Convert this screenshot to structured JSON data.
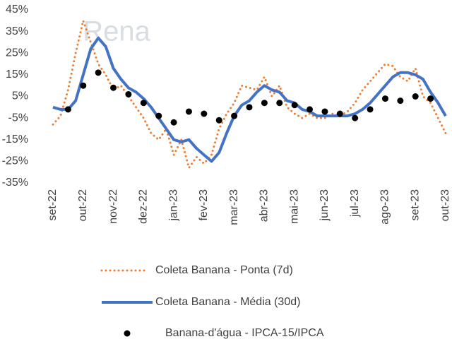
{
  "chart_data": {
    "type": "line",
    "watermark": "Rena",
    "categories": [
      "set-22",
      null,
      null,
      null,
      "out-22",
      null,
      null,
      null,
      "nov-22",
      null,
      null,
      null,
      "dez-22",
      null,
      null,
      null,
      "jan-23",
      null,
      null,
      null,
      "fev-23",
      null,
      null,
      null,
      "mar-23",
      null,
      null,
      null,
      "abr-23",
      null,
      null,
      null,
      "mai-23",
      null,
      null,
      null,
      "jun-23",
      null,
      null,
      null,
      "jul-23",
      null,
      null,
      null,
      "ago-23",
      null,
      null,
      null,
      "set-23",
      null,
      null,
      null,
      "out-23"
    ],
    "ylim": [
      -35,
      45
    ],
    "yticks": [
      {
        "value": -35,
        "label": "-35%"
      },
      {
        "value": -25,
        "label": "-25%"
      },
      {
        "value": -15,
        "label": "-15%"
      },
      {
        "value": -5,
        "label": "-5%"
      },
      {
        "value": 5,
        "label": "5%"
      },
      {
        "value": 15,
        "label": "15%"
      },
      {
        "value": 25,
        "label": "25%"
      },
      {
        "value": 35,
        "label": "35%"
      },
      {
        "value": 45,
        "label": "45%"
      }
    ],
    "grid": false,
    "legend": "bottom",
    "series": [
      {
        "name": "Coleta Banana - Ponta (7d)",
        "color": "#ed7d31",
        "style": "dotted",
        "values": [
          -8,
          -4,
          8,
          25,
          40,
          30,
          20,
          15,
          8,
          10,
          5,
          0,
          -5,
          -12,
          -15,
          -10,
          -22,
          -15,
          -28,
          -23,
          -26,
          -22,
          -10,
          -3,
          2,
          10,
          9,
          8,
          14,
          5,
          10,
          0,
          -3,
          -5,
          -3,
          -5,
          -5,
          -3,
          -4,
          -2,
          2,
          8,
          12,
          16,
          20,
          19,
          14,
          12,
          18,
          5,
          2,
          -5,
          -12
        ]
      },
      {
        "name": "Coleta Banana - Média (30d)",
        "color": "#4472c4",
        "style": "solid",
        "values": [
          0,
          -1,
          -1,
          3,
          15,
          27,
          32,
          28,
          18,
          13,
          9,
          7,
          4,
          0,
          -5,
          -10,
          -15,
          -16,
          -15,
          -19,
          -22,
          -25,
          -21,
          -12,
          -4,
          1,
          3,
          7,
          10,
          8,
          7,
          3,
          2,
          -1,
          -2,
          -4,
          -4,
          -4,
          -4,
          -4,
          -3,
          -1,
          2,
          6,
          10,
          14,
          16,
          16,
          15,
          13,
          7,
          2,
          -4
        ]
      },
      {
        "name": "Banana-d'água  - IPCA-15/IPCA",
        "color": "#000000",
        "style": "dots",
        "values": [
          null,
          null,
          -1,
          null,
          10,
          null,
          16,
          null,
          9,
          null,
          6,
          null,
          2,
          null,
          -4,
          null,
          -7,
          null,
          -2,
          null,
          -3,
          null,
          -6,
          null,
          -4,
          null,
          0,
          null,
          2,
          null,
          2,
          null,
          1,
          null,
          -1,
          null,
          -2,
          null,
          -3,
          null,
          -5,
          null,
          -1,
          null,
          4,
          null,
          3,
          null,
          5,
          null,
          4,
          null,
          null
        ]
      }
    ]
  }
}
